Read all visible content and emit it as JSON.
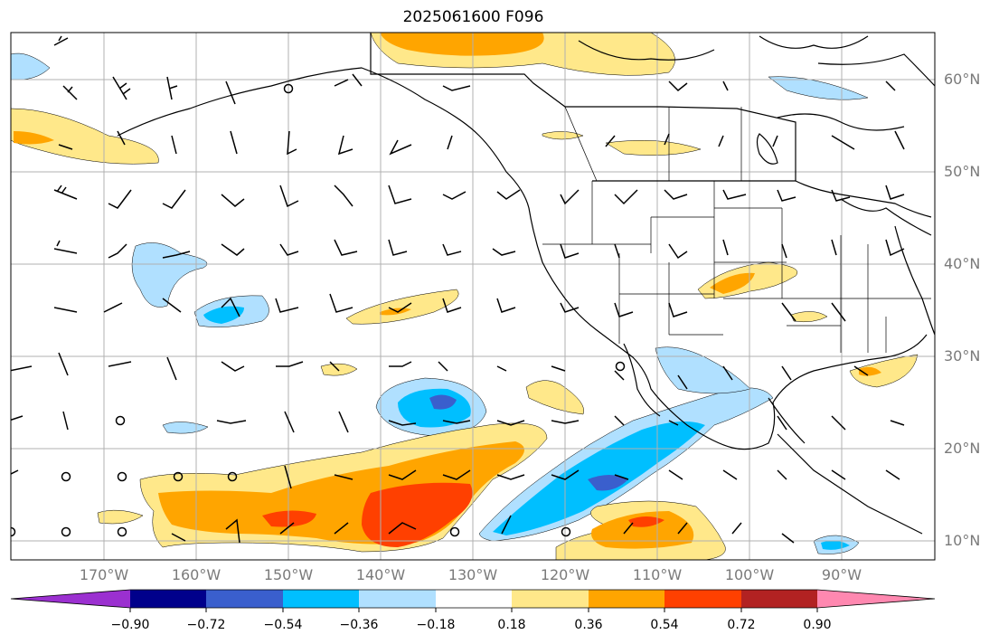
{
  "title": "2025061600 F096",
  "lat_labels": [
    "60°N",
    "50°N",
    "40°N",
    "30°N",
    "20°N",
    "10°N"
  ],
  "lon_labels": [
    "170°W",
    "160°W",
    "150°W",
    "140°W",
    "130°W",
    "120°W",
    "110°W",
    "100°W",
    "90°W"
  ],
  "colorbar": {
    "ticks": [
      "−0.90",
      "−0.72",
      "−0.54",
      "−0.36",
      "−0.18",
      "0.18",
      "0.36",
      "0.54",
      "0.72",
      "0.90"
    ],
    "colors": [
      "#9b30d0",
      "#00008b",
      "#3a5fcd",
      "#00bfff",
      "#b0e0ff",
      "#ffffff",
      "#ffe88a",
      "#ffa500",
      "#ff4000",
      "#b22222",
      "#ff88b0"
    ],
    "extend": "both"
  },
  "colors": {
    "grid": "#b0b0b0",
    "coast": "#000000"
  }
}
